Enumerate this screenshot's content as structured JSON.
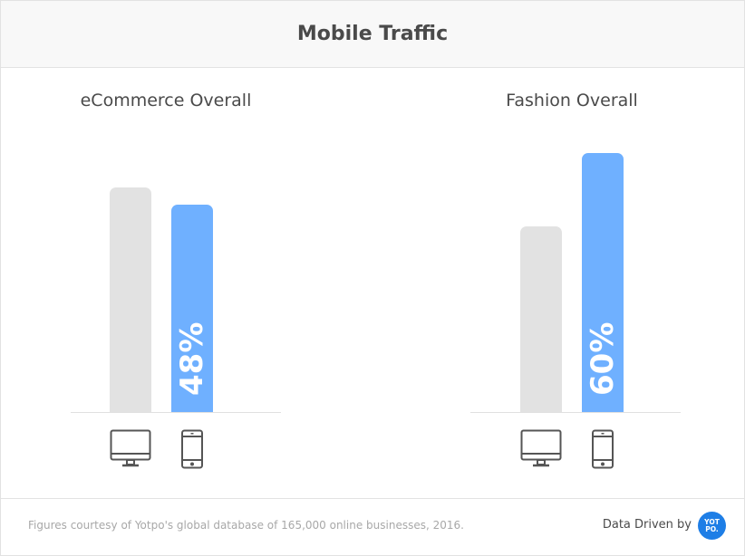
{
  "header": {
    "title": "Mobile Traffic"
  },
  "chart_data": [
    {
      "type": "bar",
      "title": "eCommerce Overall",
      "categories": [
        "desktop",
        "mobile"
      ],
      "category_icons": [
        "desktop-monitor-icon",
        "smartphone-icon"
      ],
      "values": [
        52,
        48
      ],
      "data_labels": [
        "",
        "48%"
      ],
      "colors": [
        "#e2e2e2",
        "#6fb0ff"
      ],
      "ylim": [
        0,
        100
      ],
      "grid": false
    },
    {
      "type": "bar",
      "title": "Fashion Overall",
      "categories": [
        "desktop",
        "mobile"
      ],
      "category_icons": [
        "desktop-monitor-icon",
        "smartphone-icon"
      ],
      "values": [
        43,
        60
      ],
      "data_labels": [
        "",
        "60%"
      ],
      "colors": [
        "#e2e2e2",
        "#6fb0ff"
      ],
      "ylim": [
        0,
        100
      ],
      "grid": false
    }
  ],
  "footer": {
    "note": "Figures courtesy of Yotpo's global database of 165,000 online businesses, 2016.",
    "credit": "Data Driven by",
    "logo_text": "YOTPO."
  }
}
